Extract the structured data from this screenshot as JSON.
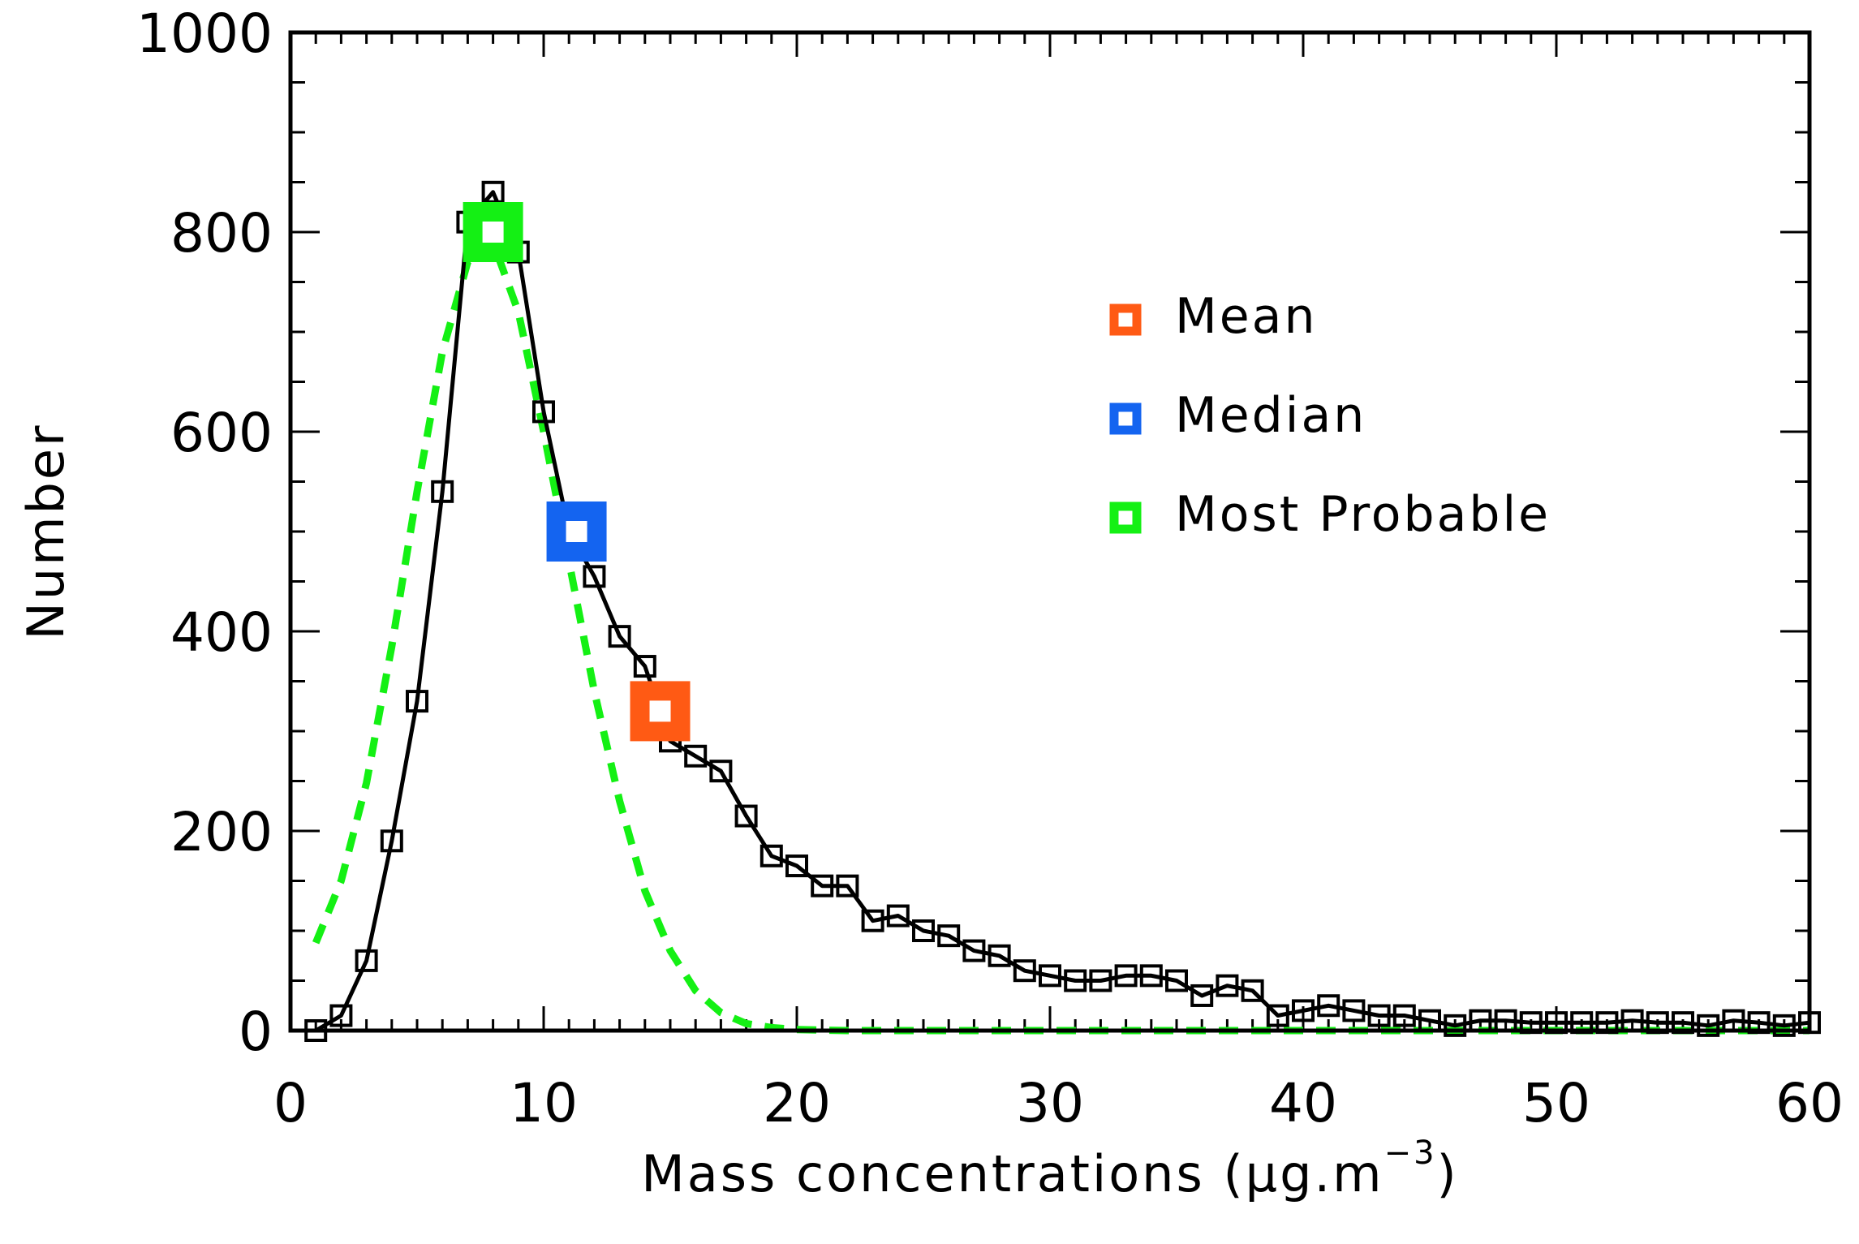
{
  "chart_data": {
    "type": "line",
    "xlabel": "Mass concentrations (μg.m",
    "xlabel_sup": "−3",
    "xlabel_end": ")",
    "ylabel": "Number",
    "xlim": [
      0,
      60
    ],
    "ylim": [
      0,
      1000
    ],
    "x_ticks": [
      0,
      10,
      20,
      30,
      40,
      50,
      60
    ],
    "y_ticks": [
      0,
      200,
      400,
      600,
      800,
      1000
    ],
    "x_tick_labels": [
      "0",
      "10",
      "20",
      "30",
      "40",
      "50",
      "60"
    ],
    "y_tick_labels": [
      "0",
      "200",
      "400",
      "600",
      "800",
      "1000"
    ],
    "grid": false,
    "legend_position": "top-right",
    "legend": [
      {
        "label": "Mean",
        "color": "#ff5a14"
      },
      {
        "label": "Median",
        "color": "#1464f0"
      },
      {
        "label": "Most Probable",
        "color": "#14f014"
      }
    ],
    "series": [
      {
        "style": "solid line with open square markers",
        "color": "#000000",
        "x": [
          1,
          2,
          3,
          4,
          5,
          6,
          7,
          8,
          9,
          10,
          11,
          12,
          13,
          14,
          15,
          16,
          17,
          18,
          19,
          20,
          21,
          22,
          23,
          24,
          25,
          26,
          27,
          28,
          29,
          30,
          31,
          32,
          33,
          34,
          35,
          36,
          37,
          38,
          39,
          40,
          41,
          42,
          43,
          44,
          45,
          46,
          47,
          48,
          49,
          50,
          51,
          52,
          53,
          54,
          55,
          56,
          57,
          58,
          59,
          60
        ],
        "y": [
          0,
          15,
          70,
          190,
          330,
          540,
          810,
          840,
          780,
          620,
          500,
          455,
          395,
          365,
          290,
          275,
          260,
          215,
          175,
          165,
          145,
          145,
          110,
          115,
          100,
          95,
          80,
          75,
          60,
          55,
          50,
          50,
          55,
          55,
          50,
          35,
          45,
          40,
          15,
          20,
          25,
          20,
          15,
          15,
          10,
          5,
          10,
          10,
          8,
          8,
          8,
          8,
          10,
          8,
          8,
          5,
          10,
          8,
          5,
          8
        ]
      },
      {
        "style": "dashed fitted curve",
        "color": "#14f014",
        "x": [
          1,
          2,
          3,
          4,
          5,
          6,
          7,
          8,
          9,
          10,
          11,
          12,
          13,
          14,
          15,
          16,
          17,
          18,
          19,
          20,
          22,
          25,
          30,
          35,
          40,
          45,
          50,
          55,
          60
        ],
        "y": [
          88,
          150,
          248,
          385,
          540,
          680,
          770,
          790,
          720,
          600,
          470,
          340,
          230,
          140,
          80,
          40,
          18,
          7,
          3,
          1,
          0,
          0,
          0,
          0,
          0,
          0,
          0,
          0,
          0
        ]
      }
    ],
    "statistics": [
      {
        "name": "Most Probable",
        "x": 8,
        "y": 800,
        "color": "#14f014"
      },
      {
        "name": "Median",
        "x": 11.3,
        "y": 500,
        "color": "#1464f0"
      },
      {
        "name": "Mean",
        "x": 14.6,
        "y": 320,
        "color": "#ff5a14"
      }
    ]
  }
}
